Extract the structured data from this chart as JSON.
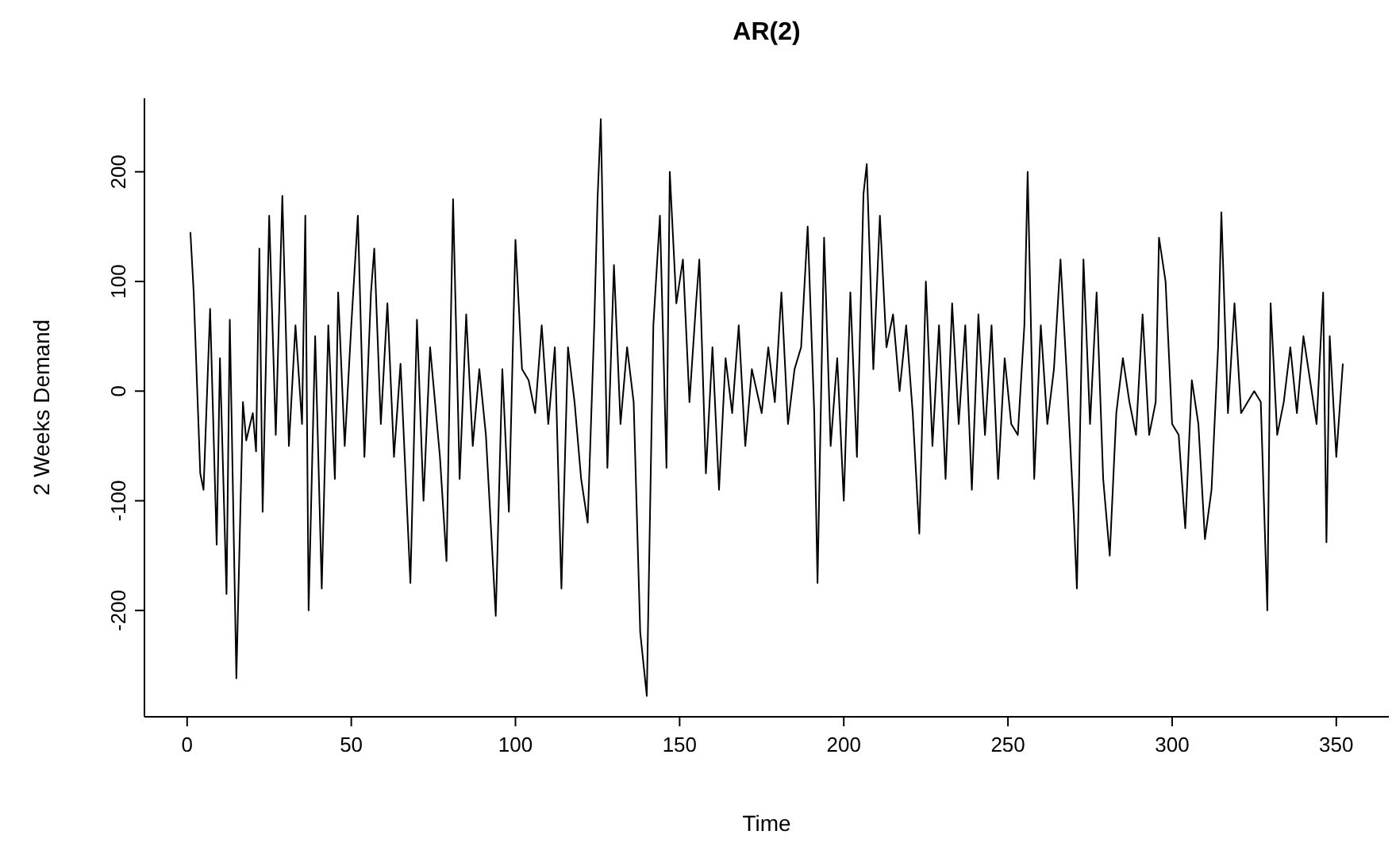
{
  "chart_data": {
    "type": "line",
    "title": "AR(2)",
    "xlabel": "Time",
    "ylabel": "2 Weeks Demand",
    "xlim": [
      -13,
      366
    ],
    "xticks": [
      0,
      50,
      100,
      150,
      200,
      250,
      300,
      350
    ],
    "ylim": [
      -297,
      267
    ],
    "yticks": [
      -200,
      -100,
      0,
      100,
      200
    ],
    "grid": false,
    "legend": false,
    "marker": "none",
    "line_style": "solid",
    "series": [
      {
        "color": "#000000",
        "x": [
          1,
          2,
          4,
          5,
          7,
          9,
          10,
          12,
          13,
          15,
          17,
          18,
          20,
          21,
          22,
          23,
          25,
          27,
          29,
          31,
          33,
          35,
          36,
          37,
          39,
          41,
          43,
          45,
          46,
          48,
          50,
          52,
          54,
          56,
          57,
          59,
          61,
          63,
          65,
          68,
          70,
          72,
          74,
          77,
          79,
          81,
          83,
          85,
          87,
          89,
          91,
          94,
          96,
          98,
          100,
          102,
          104,
          106,
          108,
          110,
          112,
          114,
          116,
          118,
          120,
          122,
          124,
          125,
          126,
          128,
          130,
          132,
          134,
          136,
          138,
          140,
          142,
          144,
          146,
          147,
          149,
          151,
          153,
          155,
          156,
          158,
          160,
          162,
          164,
          166,
          168,
          170,
          172,
          175,
          177,
          179,
          181,
          183,
          185,
          187,
          189,
          191,
          192,
          194,
          196,
          198,
          200,
          202,
          204,
          206,
          207,
          209,
          211,
          213,
          215,
          217,
          219,
          221,
          223,
          225,
          227,
          229,
          231,
          233,
          235,
          237,
          239,
          241,
          243,
          245,
          247,
          249,
          251,
          253,
          255,
          256,
          258,
          260,
          262,
          264,
          266,
          268,
          270,
          271,
          273,
          275,
          277,
          279,
          281,
          283,
          285,
          287,
          289,
          291,
          293,
          295,
          296,
          298,
          300,
          302,
          304,
          306,
          308,
          310,
          312,
          314,
          315,
          317,
          319,
          321,
          323,
          325,
          327,
          329,
          330,
          332,
          334,
          336,
          338,
          340,
          342,
          344,
          346,
          347,
          348,
          350,
          352
        ],
        "values": [
          145,
          90,
          -75,
          -90,
          75,
          -140,
          30,
          -185,
          65,
          -262,
          -10,
          -45,
          -20,
          -55,
          130,
          -110,
          160,
          -40,
          178,
          -50,
          60,
          -30,
          160,
          -200,
          50,
          -180,
          60,
          -80,
          90,
          -50,
          60,
          160,
          -60,
          90,
          130,
          -30,
          80,
          -60,
          25,
          -175,
          65,
          -100,
          40,
          -60,
          -155,
          175,
          -80,
          70,
          -50,
          20,
          -40,
          -205,
          20,
          -110,
          138,
          20,
          10,
          -20,
          60,
          -30,
          40,
          -180,
          40,
          -10,
          -80,
          -120,
          60,
          175,
          248,
          -70,
          115,
          -30,
          40,
          -10,
          -220,
          -278,
          60,
          160,
          -70,
          200,
          80,
          120,
          -10,
          80,
          120,
          -75,
          40,
          -90,
          30,
          -20,
          60,
          -50,
          20,
          -20,
          40,
          -10,
          90,
          -30,
          20,
          40,
          150,
          -20,
          -175,
          140,
          -50,
          30,
          -100,
          90,
          -60,
          180,
          207,
          20,
          160,
          40,
          70,
          0,
          60,
          -20,
          -130,
          100,
          -50,
          60,
          -80,
          80,
          -30,
          60,
          -90,
          70,
          -40,
          60,
          -80,
          30,
          -30,
          -40,
          60,
          200,
          -80,
          60,
          -30,
          20,
          120,
          10,
          -110,
          -180,
          120,
          -30,
          90,
          -80,
          -150,
          -20,
          30,
          -10,
          -40,
          70,
          -40,
          -10,
          140,
          100,
          -30,
          -40,
          -125,
          10,
          -30,
          -135,
          -90,
          40,
          163,
          -20,
          80,
          -20,
          -10,
          0,
          -10,
          -200,
          80,
          -40,
          -10,
          40,
          -20,
          50,
          10,
          -30,
          90,
          -138,
          50,
          -60,
          25
        ]
      }
    ]
  }
}
